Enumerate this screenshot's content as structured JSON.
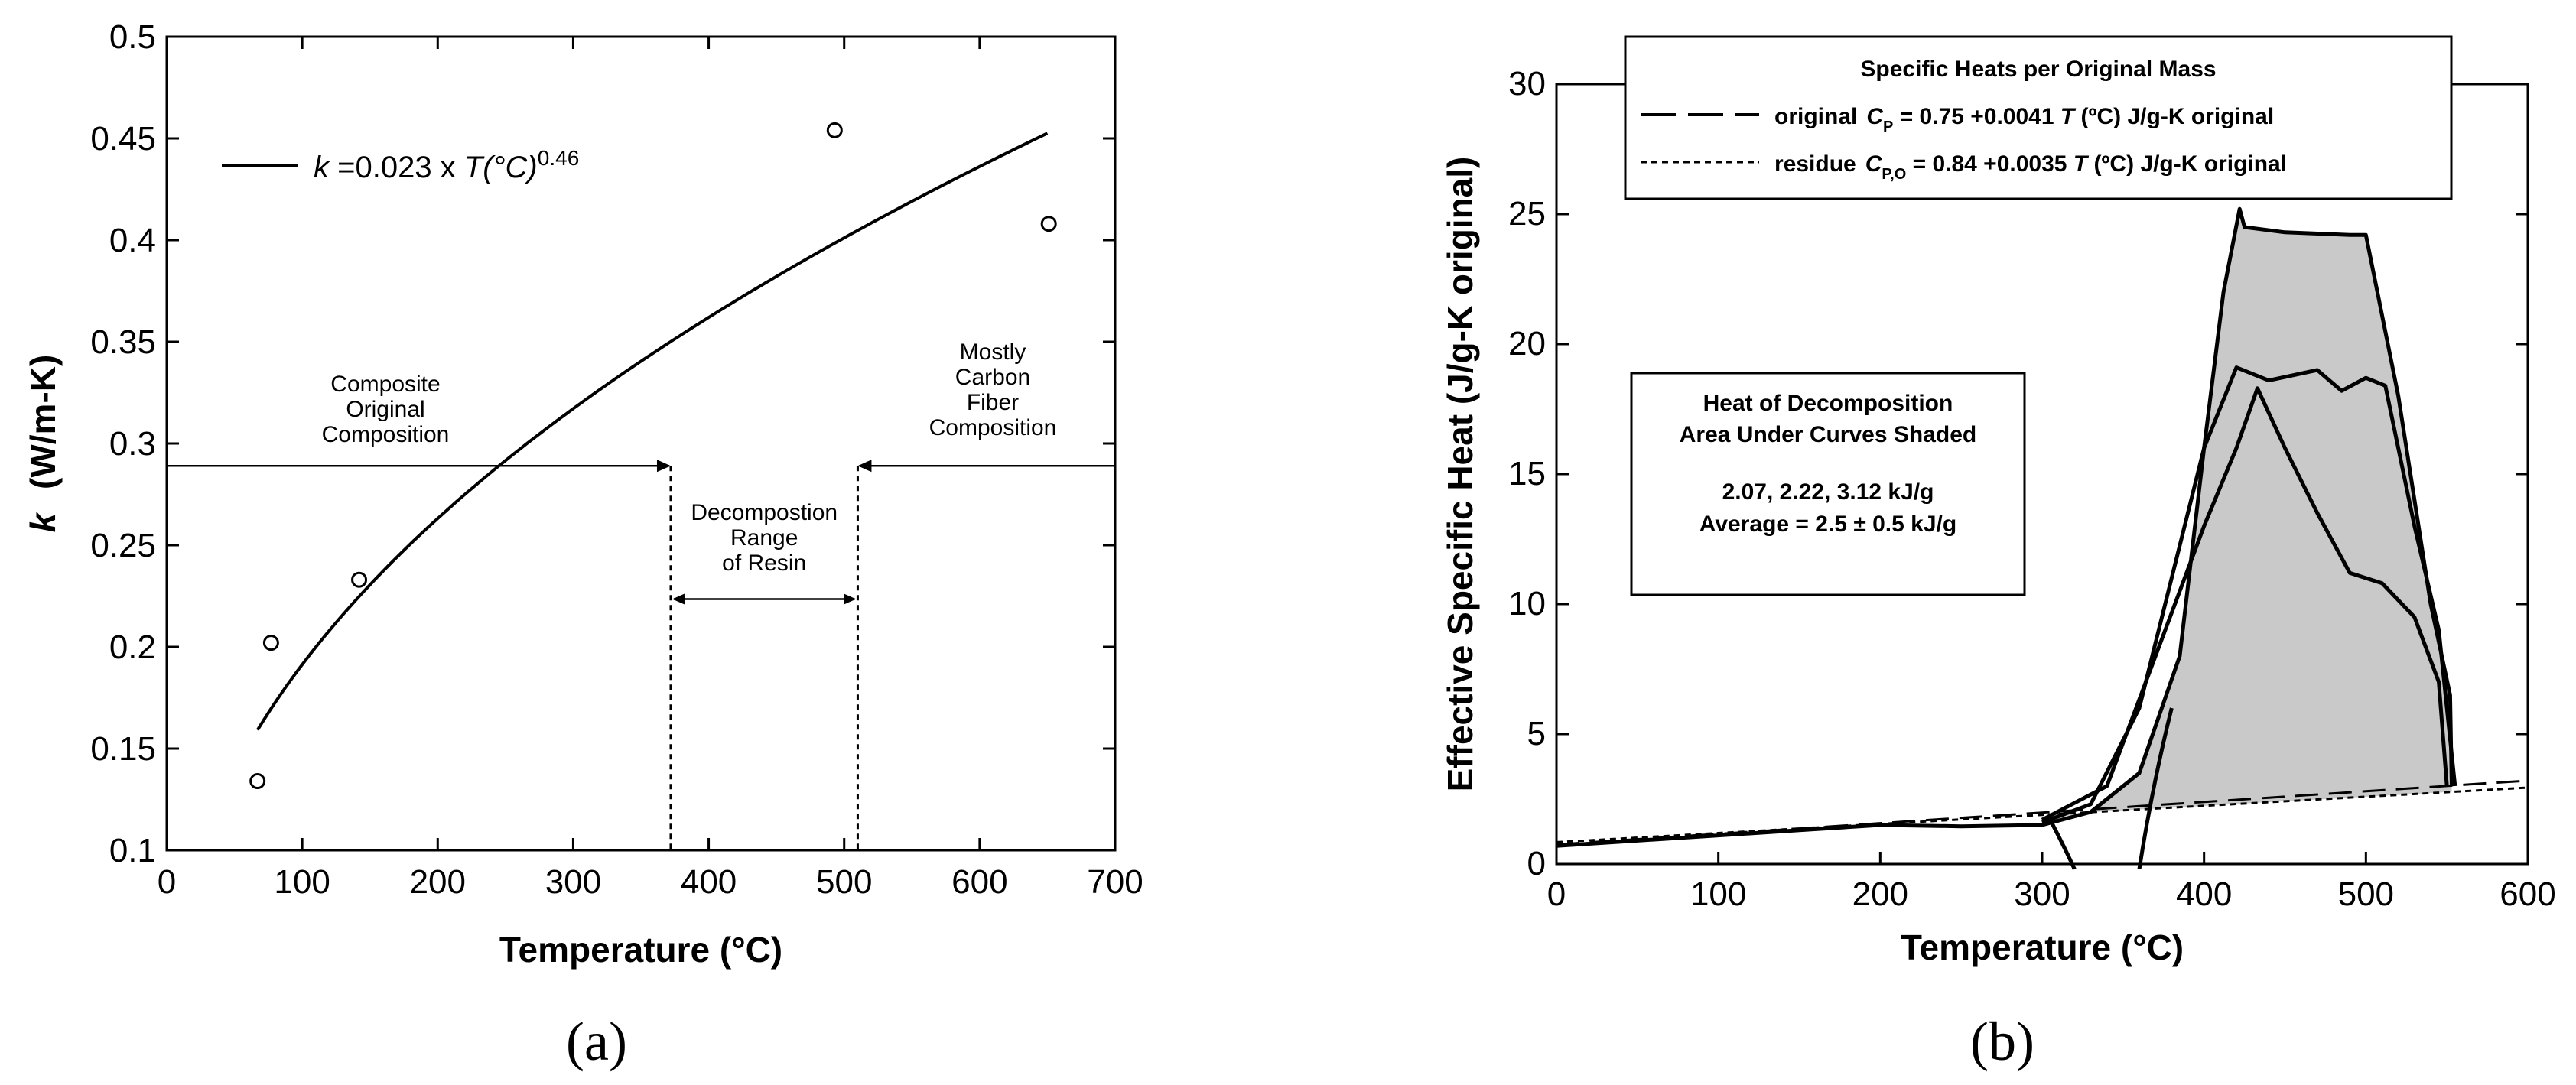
{
  "panel_a": {
    "caption": "(a)",
    "chart_data": {
      "type": "scatter",
      "xlabel": "Temperature (°C)",
      "ylabel_var": "k",
      "ylabel_unit": "(W/m-K)",
      "xlim": [
        0,
        700
      ],
      "ylim": [
        0.1,
        0.5
      ],
      "xticks": [
        "0",
        "100",
        "200",
        "300",
        "400",
        "500",
        "600",
        "700"
      ],
      "yticks": [
        "0.1",
        "0.15",
        "0.2",
        "0.25",
        "0.3",
        "0.35",
        "0.4",
        "0.45",
        "0.5"
      ],
      "points": [
        [
          67,
          0.134
        ],
        [
          77,
          0.202
        ],
        [
          142,
          0.233
        ],
        [
          493,
          0.454
        ],
        [
          651,
          0.408
        ]
      ],
      "fit": {
        "coef": 0.023,
        "exp": 0.46,
        "xrange": [
          67,
          650
        ]
      },
      "legend": {
        "k": "k",
        "eq": " =0.023 x ",
        "T": "T(°C)",
        "exp": "0.46"
      },
      "annotations": {
        "composite": [
          "Composite",
          "Original",
          "Composition"
        ],
        "carbon": [
          "Mostly",
          "Carbon",
          "Fiber",
          "Composition"
        ],
        "decomp": [
          "Decompostion",
          "Range",
          "of Resin"
        ]
      },
      "reference_level": 0.289,
      "region_bounds": [
        372,
        510
      ]
    }
  },
  "panel_b": {
    "caption": "(b)",
    "chart_data": {
      "type": "line",
      "xlabel": "Temperature (°C)",
      "ylabel": "Effective Specific Heat (J/g-K original)",
      "xlim": [
        0,
        600
      ],
      "ylim": [
        0,
        30
      ],
      "xticks": [
        "0",
        "100",
        "200",
        "300",
        "400",
        "500",
        "600"
      ],
      "yticks": [
        "0",
        "5",
        "10",
        "15",
        "20",
        "25",
        "30"
      ],
      "legend": {
        "title": "Specific Heats per Original Mass",
        "orig_name": "original",
        "orig_sym": "C",
        "orig_sub": "P",
        "orig_eq": " = 0.75 +0.0041 ",
        "orig_T": "T",
        "orig_unit": " (ºC) J/g-K original",
        "res_name": "residue",
        "res_sym": "C",
        "res_sub": "P,O",
        "res_eq": " = 0.84 +0.0035 ",
        "res_T": "T",
        "res_unit": " (ºC) J/g-K original"
      },
      "annotation": [
        "Heat of Decomposition",
        "Area Under Curves Shaded",
        "2.07, 2.22, 3.12 kJ/g",
        "Average = 2.5 ± 0.5 kJ/g"
      ],
      "series": [
        {
          "points": [
            [
              0,
              0.7
            ],
            [
              50,
              0.9
            ],
            [
              100,
              1.1
            ],
            [
              150,
              1.3
            ],
            [
              200,
              1.5
            ],
            [
              250,
              1.45
            ],
            [
              300,
              1.5
            ],
            [
              330,
              2.0
            ],
            [
              360,
              3.5
            ],
            [
              385,
              8
            ],
            [
              400,
              16
            ],
            [
              412,
              22
            ],
            [
              422,
              25.2
            ],
            [
              425,
              24.5
            ],
            [
              450,
              24.3
            ],
            [
              490,
              24.2
            ],
            [
              500,
              24.2
            ],
            [
              520,
              18
            ],
            [
              540,
              10
            ],
            [
              552,
              6.5
            ],
            [
              553,
              3.0
            ]
          ]
        },
        {
          "points": [
            [
              300,
              1.6
            ],
            [
              330,
              2.3
            ],
            [
              360,
              6
            ],
            [
              380,
              11
            ],
            [
              400,
              16
            ],
            [
              420,
              19.1
            ],
            [
              440,
              18.6
            ],
            [
              470,
              19
            ],
            [
              485,
              18.2
            ],
            [
              500,
              18.7
            ],
            [
              512,
              18.4
            ],
            [
              530,
              13
            ],
            [
              545,
              9
            ],
            [
              555,
              3.0
            ]
          ]
        },
        {
          "points": [
            [
              300,
              1.7
            ],
            [
              340,
              3
            ],
            [
              370,
              8
            ],
            [
              400,
              13
            ],
            [
              420,
              16
            ],
            [
              433,
              18.3
            ],
            [
              450,
              16
            ],
            [
              470,
              13.5
            ],
            [
              490,
              11.2
            ],
            [
              510,
              10.8
            ],
            [
              530,
              9.5
            ],
            [
              545,
              7
            ],
            [
              550,
              3.0
            ]
          ]
        }
      ],
      "original_fit": {
        "a": 0.75,
        "b": 0.0041
      },
      "residue_fit": {
        "a": 0.84,
        "b": 0.0035
      }
    }
  }
}
